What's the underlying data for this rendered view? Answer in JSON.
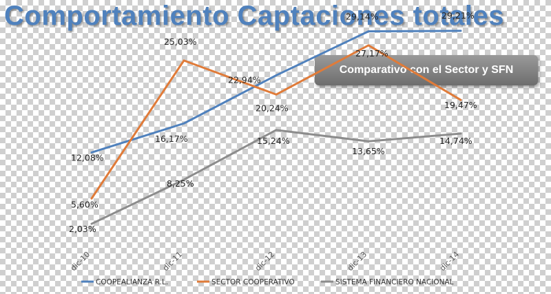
{
  "title": "Comportamiento Captaciones totales",
  "subtitle": "Comparativo con el Sector y SFN",
  "chart_data": {
    "type": "line",
    "title": "Comportamiento Captaciones totales",
    "subtitle": "Comparativo con el Sector y SFN",
    "categories": [
      "dic-10",
      "dic-11",
      "dic-12",
      "dic-13",
      "dic-14"
    ],
    "ylim": [
      0,
      32
    ],
    "grid": false,
    "legend": "bottom",
    "series": [
      {
        "name": "COOPEALIANZA R.L.",
        "color": "#4f81bd",
        "values": [
          12.08,
          16.17,
          22.94,
          29.14,
          29.21
        ],
        "labels": [
          "12,08%",
          "16,17%",
          "22,94%",
          "29,14%",
          "29,21%"
        ]
      },
      {
        "name": "SECTOR COOPERATIVO",
        "color": "#e07b39",
        "values": [
          5.6,
          25.03,
          20.24,
          27.17,
          19.47
        ],
        "labels": [
          "5,60%",
          "25,03%",
          "20,24%",
          "27,17%",
          "19,47%"
        ]
      },
      {
        "name": "SISTEMA FINANCIERO NACIONAL",
        "color": "#8c8c8c",
        "values": [
          2.03,
          8.25,
          15.24,
          13.65,
          14.74
        ],
        "labels": [
          "2,03%",
          "8,25%",
          "15,24%",
          "13,65%",
          "14,74%"
        ]
      }
    ]
  }
}
